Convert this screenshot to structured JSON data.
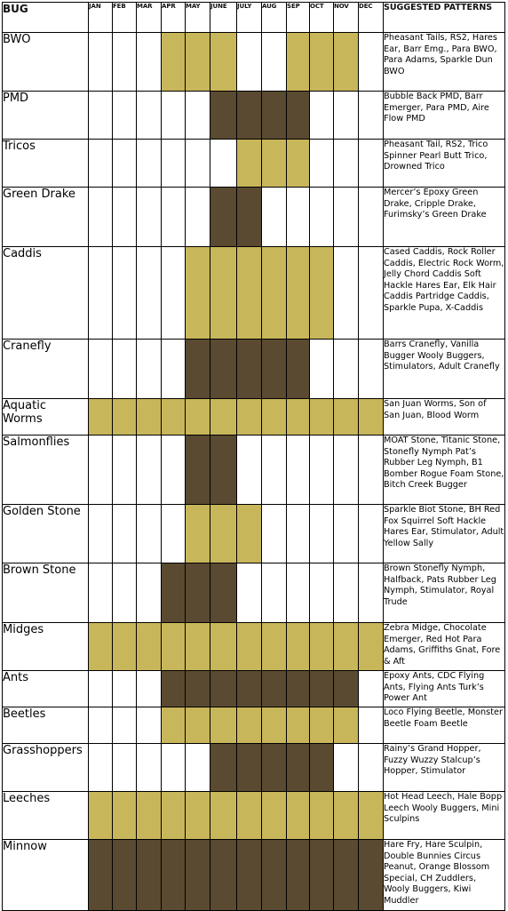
{
  "header": {
    "bug": "BUG",
    "months": [
      "JAN",
      "FEB",
      "MAR",
      "APR",
      "MAY",
      "JUNE",
      "JULY",
      "AUG",
      "SEP",
      "OCT",
      "NOV",
      "DEC"
    ],
    "patterns": "SUGGESTED PATTERNS"
  },
  "colors": {
    "light": "#c8b65a",
    "dark": "#5a4a32",
    "none": "#ffffff"
  },
  "bugs": [
    {
      "name": "BWO",
      "months": "000LLL00LLL0",
      "patterns": "Pheasant Tails, RS2, Hares Ear, Barr Emg., Para BWO, Para Adams, Sparkle Dun BWO"
    },
    {
      "name": "PMD",
      "months": "00000DDDD000",
      "patterns": "Bubble Back PMD, Barr Emerger, Para PMD, Aire Flow PMD"
    },
    {
      "name": "Tricos",
      "months": "000000LLL000",
      "patterns": "Pheasant Tail, RS2, Trico Spinner Pearl Butt Trico, Drowned Trico"
    },
    {
      "name": "Green Drake",
      "months": "00000DD00000",
      "patterns": "Mercer’s Epoxy Green Drake, Cripple Drake, Furimsky’s Green Drake"
    },
    {
      "name": "Caddis",
      "months": "0000LLLLLL00",
      "patterns": "Cased Caddis, Rock Roller Caddis, Electric Rock Worm, Jelly Chord Caddis Soft Hackle Hares Ear, Elk Hair Caddis Partridge Caddis, Sparkle Pupa, X-Caddis"
    },
    {
      "name": "Cranefly",
      "months": "0000DDDDD000",
      "patterns": "Barrs Cranefly, Vanilla Bugger Wooly Buggers, Stimulators, Adult Cranefly"
    },
    {
      "name": "Aquatic Worms",
      "months": "LLLLLLLLLLLL",
      "patterns": "San Juan Worms, Son of San Juan, Blood Worm"
    },
    {
      "name": "Salmonflies",
      "months": "0000DD000000",
      "patterns": "MOAT Stone, Titanic Stone, Stonefly Nymph Pat’s Rubber Leg Nymph, B1 Bomber Rogue Foam Stone, Bitch Creek Bugger"
    },
    {
      "name": "Golden Stone",
      "months": "0000LLL00000",
      "patterns": "Sparkle Biot Stone, BH Red Fox Squirrel Soft Hackle Hares Ear, Stimulator, Adult Yellow Sally"
    },
    {
      "name": "Brown Stone",
      "months": "000DDD000000",
      "patterns": "Brown Stonefly Nymph, Halfback, Pats Rubber Leg Nymph, Stimulator, Royal Trude"
    },
    {
      "name": "Midges",
      "months": "LLLLLLLLLLLL",
      "patterns": "Zebra Midge, Chocolate Emerger, Red Hot Para Adams, Griffiths Gnat, Fore & Aft"
    },
    {
      "name": "Ants",
      "months": "000DDDDDDDD0",
      "patterns": "Epoxy Ants, CDC Flying Ants, Flying Ants Turk’s Power Ant"
    },
    {
      "name": "Beetles",
      "months": "000LLLLLLLL0",
      "patterns": "Loco Flying Beetle, Monster Beetle Foam Beetle"
    },
    {
      "name": "Grasshoppers",
      "months": "00000DDDDD00",
      "patterns": "Rainy’s Grand Hopper, Fuzzy Wuzzy Stalcup’s Hopper, Stimulator"
    },
    {
      "name": "Leeches",
      "months": "LLLLLLLLLLLL",
      "patterns": "Hot Head Leech, Hale Bopp Leech Wooly Buggers, Mini Sculpins"
    },
    {
      "name": "Minnow",
      "months": "DDDDDDDDDDDD",
      "patterns": "Hare Fry, Hare Sculpin, Double Bunnies Circus Peanut, Orange Blossom Special, CH Zuddlers, Wooly Buggers, Kiwi Muddler"
    }
  ]
}
